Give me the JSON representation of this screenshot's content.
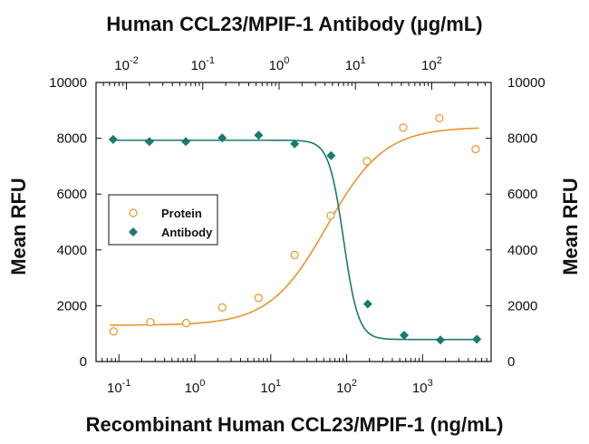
{
  "chart_data": {
    "type": "scatter",
    "title": "Human CCL23/MPIF-1 Antibody (µg/mL)",
    "xlabel": "Recombinant Human CCL23/MPIF-1 (ng/mL)",
    "ylabel_left": "Mean RFU",
    "ylabel_right": "Mean RFU",
    "x_scale": "log",
    "x_bottom_ticks": [
      {
        "value": 0.1,
        "base": "10",
        "exp": "-1"
      },
      {
        "value": 1,
        "base": "10",
        "exp": "0"
      },
      {
        "value": 10,
        "base": "10",
        "exp": "1"
      },
      {
        "value": 100,
        "base": "10",
        "exp": "2"
      },
      {
        "value": 1000,
        "base": "10",
        "exp": "3"
      }
    ],
    "x_top_ticks": [
      {
        "value": 0.01,
        "base": "10",
        "exp": "-2"
      },
      {
        "value": 0.1,
        "base": "10",
        "exp": "-1"
      },
      {
        "value": 1,
        "base": "10",
        "exp": "0"
      },
      {
        "value": 10,
        "base": "10",
        "exp": "1"
      },
      {
        "value": 100,
        "base": "10",
        "exp": "2"
      }
    ],
    "xlim_bottom": [
      0.05,
      8000
    ],
    "xlim_top": [
      0.004,
      600
    ],
    "ylim": [
      0,
      10000
    ],
    "y_ticks": [
      "0",
      "2000",
      "4000",
      "6000",
      "8000",
      "10000"
    ],
    "grid": false,
    "legend_position": "middle-left",
    "series": [
      {
        "name": "Protein",
        "axis": "bottom",
        "marker": "open-circle",
        "color": "#E8962A",
        "x": [
          0.085,
          0.26,
          0.77,
          2.3,
          6.9,
          20.6,
          61.7,
          185,
          556,
          1667,
          5000
        ],
        "y": [
          1080,
          1410,
          1380,
          1940,
          2280,
          3820,
          5230,
          7180,
          8380,
          8720,
          7610
        ],
        "fit": {
          "bottom": 1300,
          "top": 8400,
          "ec50": 55,
          "hill": 1.15
        }
      },
      {
        "name": "Antibody",
        "axis": "top",
        "marker": "filled-diamond",
        "color": "#1A7A6E",
        "x": [
          0.0067,
          0.02,
          0.06,
          0.18,
          0.54,
          1.6,
          4.8,
          14.5,
          43.5,
          130,
          390
        ],
        "y": [
          7960,
          7880,
          7880,
          8010,
          8110,
          7800,
          7380,
          2060,
          940,
          770,
          800
        ],
        "fit": {
          "bottom": 790,
          "top": 7930,
          "ec50": 7.0,
          "hill": 4.5
        }
      }
    ]
  }
}
